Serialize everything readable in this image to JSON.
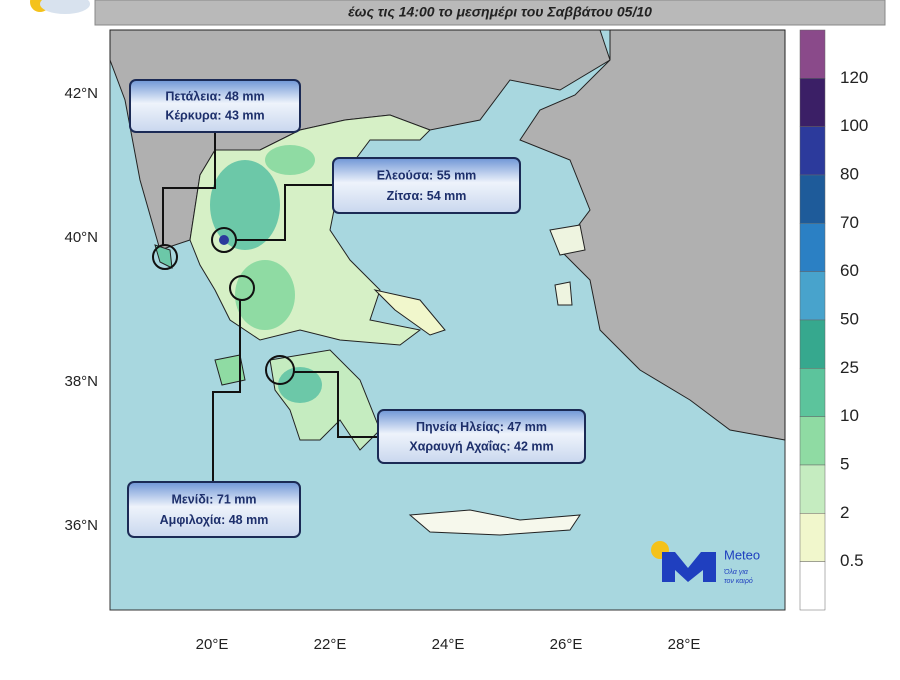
{
  "header": {
    "subtitle": "έως τις 14:00 το μεσημέρι του Σαββάτου 05/10"
  },
  "map": {
    "lat_labels": [
      "42°N",
      "40°N",
      "38°N",
      "36°N"
    ],
    "lon_labels": [
      "20°E",
      "22°E",
      "24°E",
      "26°E",
      "28°E"
    ]
  },
  "legend": {
    "labels": [
      120,
      100,
      80,
      70,
      60,
      50,
      25,
      10,
      5,
      2,
      0.5
    ],
    "colors": [
      "#8a4a8a",
      "#3b1f66",
      "#2c3a9c",
      "#1e5b9a",
      "#2b80c4",
      "#48a3cc",
      "#36a88e",
      "#5cc49c",
      "#8fdba3",
      "#c5ecc0",
      "#f1f7cc",
      "#ffffff"
    ]
  },
  "callouts": [
    {
      "lines": [
        "Πετάλεια: 48 mm",
        "Κέρκυρα: 43 mm"
      ]
    },
    {
      "lines": [
        "Ελεούσα: 55 mm",
        "Ζίτσα: 54 mm"
      ]
    },
    {
      "lines": [
        "Πηνεία Ηλείας: 47 mm",
        "Χαραυγή Αχαΐας: 42 mm"
      ]
    },
    {
      "lines": [
        "Μενίδι: 71 mm",
        "Αμφιλοχία: 48 mm"
      ]
    }
  ],
  "logo": {
    "name": "Meteo",
    "tagline": [
      "Όλα για",
      "τον καιρό"
    ]
  }
}
